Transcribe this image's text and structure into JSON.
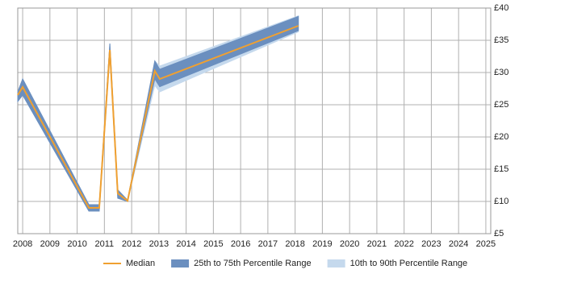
{
  "chart_data": {
    "type": "range-line",
    "x": [
      2007.82,
      2008.0,
      2010.43,
      2010.81,
      2011.2,
      2011.49,
      2011.85,
      2012.85,
      2013.03,
      2018.12
    ],
    "series": [
      {
        "name": "Median",
        "color": "#f0a030",
        "values": [
          26.5,
          27.75,
          9.0,
          9.0,
          33.5,
          11.25,
          10.1,
          30.25,
          29.0,
          37.25
        ]
      },
      {
        "name": "25th to 75th Percentile Range",
        "color": "#6b8fbf",
        "low": [
          25.5,
          26.5,
          8.5,
          8.5,
          33.0,
          10.5,
          10.0,
          29.0,
          27.8,
          36.5
        ],
        "high": [
          27.0,
          29.0,
          9.5,
          9.5,
          34.5,
          11.8,
          10.2,
          31.8,
          30.5,
          38.7
        ]
      },
      {
        "name": "10th to 90th Percentile Range",
        "color": "#c5d9ed",
        "low": [
          25.5,
          26.5,
          8.5,
          8.5,
          33.0,
          10.5,
          10.0,
          28.0,
          27.0,
          36.3
        ],
        "high": [
          27.0,
          29.0,
          9.5,
          9.5,
          34.5,
          11.8,
          10.2,
          31.8,
          31.0,
          38.8
        ]
      }
    ],
    "xlim": [
      2007.82,
      2025.18
    ],
    "xticks": [
      2008,
      2009,
      2010,
      2011,
      2012,
      2013,
      2014,
      2015,
      2016,
      2017,
      2018,
      2019,
      2020,
      2021,
      2022,
      2023,
      2024,
      2025
    ],
    "ylim": [
      5,
      40
    ],
    "yticks": [
      {
        "value": 5,
        "label": "£5"
      },
      {
        "value": 10,
        "label": "£10"
      },
      {
        "value": 15,
        "label": "£15"
      },
      {
        "value": 20,
        "label": "£20"
      },
      {
        "value": 25,
        "label": "£25"
      },
      {
        "value": 30,
        "label": "£30"
      },
      {
        "value": 35,
        "label": "£35"
      },
      {
        "value": 40,
        "label": "£40"
      }
    ],
    "grid": true
  }
}
